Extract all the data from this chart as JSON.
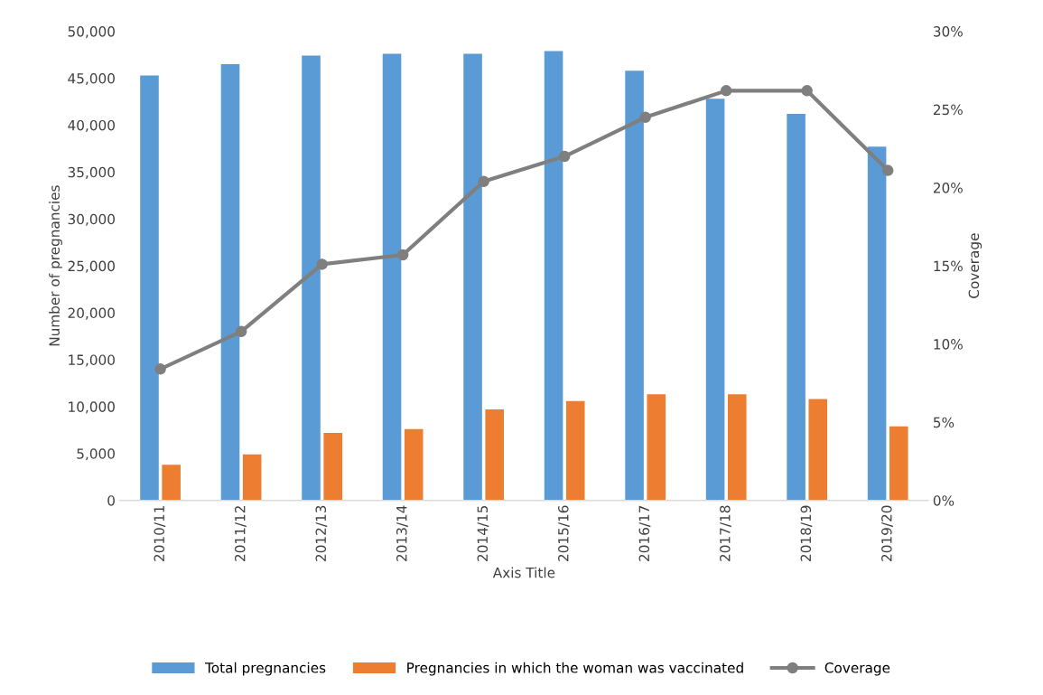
{
  "chart_data": {
    "type": "bar",
    "categories": [
      "2010/11",
      "2011/12",
      "2012/13",
      "2013/14",
      "2014/15",
      "2015/16",
      "2016/17",
      "2017/18",
      "2018/19",
      "2019/20"
    ],
    "series": [
      {
        "name": "Total pregnancies",
        "color": "#5b9bd5",
        "values": [
          45300,
          46500,
          47400,
          47600,
          47600,
          47900,
          45800,
          42800,
          41200,
          37700
        ]
      },
      {
        "name": "Pregnancies in which the woman was vaccinated",
        "color": "#ed7d31",
        "values": [
          3800,
          4900,
          7200,
          7600,
          9700,
          10600,
          11300,
          11300,
          10800,
          7900
        ]
      },
      {
        "name": "Coverage",
        "type": "line",
        "axis": "y2",
        "color": "#7f7f7f",
        "marker": "circle",
        "values": [
          8.4,
          10.8,
          15.1,
          15.7,
          20.4,
          22.0,
          24.5,
          26.2,
          26.2,
          21.1
        ]
      }
    ],
    "xlabel": "Axis Title",
    "ylabel": "Number of pregnancies",
    "y2label": "Coverage",
    "ylim": [
      0,
      50000
    ],
    "yticks": [
      {
        "value": 0,
        "label": "0"
      },
      {
        "value": 5000,
        "label": "5,000"
      },
      {
        "value": 10000,
        "label": "10,000"
      },
      {
        "value": 15000,
        "label": "15,000"
      },
      {
        "value": 20000,
        "label": "20,000"
      },
      {
        "value": 25000,
        "label": "25,000"
      },
      {
        "value": 30000,
        "label": "30,000"
      },
      {
        "value": 35000,
        "label": "35,000"
      },
      {
        "value": 40000,
        "label": "40,000"
      },
      {
        "value": 45000,
        "label": "45,000"
      },
      {
        "value": 50000,
        "label": "50,000"
      }
    ],
    "y2lim": [
      0,
      30
    ],
    "y2ticks": [
      {
        "value": 0,
        "label": "0%"
      },
      {
        "value": 5,
        "label": "5%"
      },
      {
        "value": 10,
        "label": "10%"
      },
      {
        "value": 15,
        "label": "15%"
      },
      {
        "value": 20,
        "label": "20%"
      },
      {
        "value": 25,
        "label": "25%"
      },
      {
        "value": 30,
        "label": "30%"
      }
    ],
    "grid": false,
    "legend": "bottom"
  }
}
